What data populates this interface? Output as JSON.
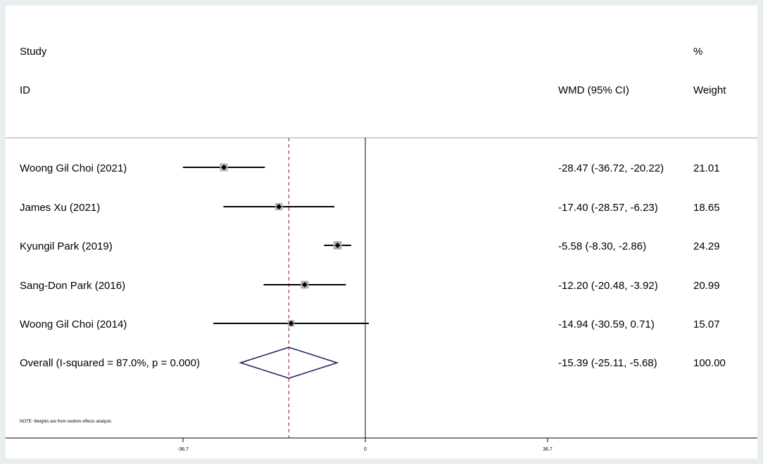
{
  "header": {
    "study_label": "Study",
    "id_label": "ID",
    "effect_label": "WMD (95% CI)",
    "percent_label": "%",
    "weight_label": "Weight"
  },
  "note": "NOTE: Weights are from random effects analysis",
  "chart_data": {
    "type": "forest",
    "effect_measure": "WMD (95% CI)",
    "xlim": [
      -50,
      50
    ],
    "x_ticks": [
      {
        "value": -36.7,
        "label": "-36.7"
      },
      {
        "value": 0,
        "label": "0"
      },
      {
        "value": 36.7,
        "label": "36.7"
      }
    ],
    "null_line": 0,
    "studies": [
      {
        "label": "Woong Gil Choi (2021)",
        "estimate": -28.47,
        "ci_low": -36.72,
        "ci_high": -20.22,
        "ci_text": "-28.47 (-36.72, -20.22)",
        "weight": 21.01,
        "weight_text": "21.01"
      },
      {
        "label": "James Xu (2021)",
        "estimate": -17.4,
        "ci_low": -28.57,
        "ci_high": -6.23,
        "ci_text": "-17.40 (-28.57, -6.23)",
        "weight": 18.65,
        "weight_text": "18.65"
      },
      {
        "label": "Kyungil Park (2019)",
        "estimate": -5.58,
        "ci_low": -8.3,
        "ci_high": -2.86,
        "ci_text": "-5.58 (-8.30, -2.86)",
        "weight": 24.29,
        "weight_text": "24.29"
      },
      {
        "label": "Sang-Don Park (2016)",
        "estimate": -12.2,
        "ci_low": -20.48,
        "ci_high": -3.92,
        "ci_text": "-12.20 (-20.48, -3.92)",
        "weight": 20.99,
        "weight_text": "20.99"
      },
      {
        "label": "Woong Gil Choi (2014)",
        "estimate": -14.94,
        "ci_low": -30.59,
        "ci_high": 0.71,
        "ci_text": "-14.94 (-30.59, 0.71)",
        "weight": 15.07,
        "weight_text": "15.07"
      }
    ],
    "overall": {
      "label": "Overall  (I-squared = 87.0%, p = 0.000)",
      "estimate": -15.39,
      "ci_low": -25.11,
      "ci_high": -5.68,
      "ci_text": "-15.39 (-25.11, -5.68)",
      "weight": 100.0,
      "weight_text": "100.00"
    },
    "colors": {
      "line": "#000000",
      "weight_box": "#b4b4b4",
      "diamond": "#1a1a66",
      "overall_line": "#8b1a1a",
      "divider": "#a0a0a0",
      "background": "#e8eef0"
    }
  }
}
